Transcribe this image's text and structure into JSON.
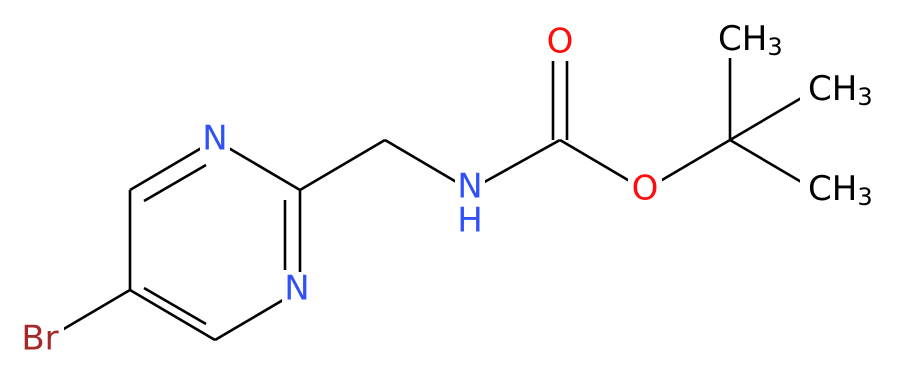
{
  "atoms": {
    "br": "Br",
    "n1": "N",
    "n3": "N",
    "nh": {
      "n": "N",
      "h": "H"
    },
    "o_carbonyl": "O",
    "o_ester": "O",
    "methyl_top": {
      "text": "CH",
      "sub": "3"
    },
    "methyl_mid": {
      "text": "CH",
      "sub": "3"
    },
    "methyl_bottom": {
      "text": "CH",
      "sub": "3"
    }
  }
}
